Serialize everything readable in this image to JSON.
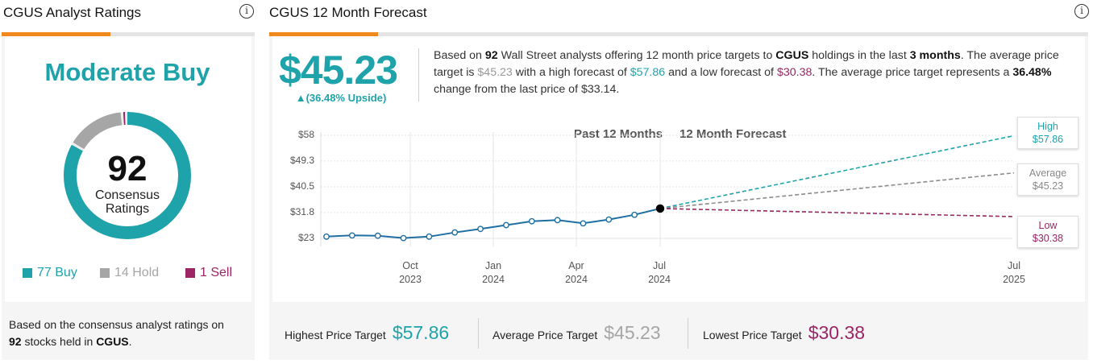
{
  "left": {
    "title": "CGUS Analyst Ratings",
    "consensus": "Moderate Buy",
    "total_ratings": "92",
    "ratings_label_1": "Consensus",
    "ratings_label_2": "Ratings",
    "legend": [
      {
        "label": "77 Buy",
        "color": "#1fa3ab",
        "count": 77
      },
      {
        "label": "14 Hold",
        "color": "#a6a6a6",
        "count": 14
      },
      {
        "label": "1 Sell",
        "color": "#9c2565",
        "count": 1
      }
    ],
    "footnote_1": "Based on the consensus analyst ratings on",
    "footnote_num": "92",
    "footnote_2": " stocks held in ",
    "footnote_ticker": "CGUS",
    "footnote_end": "."
  },
  "right": {
    "title": "CGUS 12 Month Forecast",
    "price": "$45.23",
    "upside": "▲(36.48% Upside)",
    "desc": {
      "s1": "Based on ",
      "n_analysts": "92",
      "s2": " Wall Street analysts offering 12 month price targets to ",
      "ticker": "CGUS",
      "s3": " holdings in the last ",
      "months": "3 months",
      "s4": ". The average price target is ",
      "avg": "$45.23",
      "s5": " with a high forecast of ",
      "high": "$57.86",
      "s6": " and a low forecast of ",
      "low": "$30.38",
      "s7": ". The average price target represents a ",
      "change": "36.48%",
      "s8": " change from the last price of ",
      "last": "$33.14",
      "s9": "."
    },
    "chart_past_label": "Past 12 Months",
    "chart_forecast_label": "12 Month Forecast",
    "callouts": {
      "high_label": "High",
      "high_value": "$57.86",
      "avg_label": "Average",
      "avg_value": "$45.23",
      "low_label": "Low",
      "low_value": "$30.38"
    },
    "footer": {
      "highest_label": "Highest Price Target",
      "highest_value": "$57.86",
      "average_label": "Average Price Target",
      "average_value": "$45.23",
      "lowest_label": "Lowest Price Target",
      "lowest_value": "$30.38"
    }
  },
  "colors": {
    "teal": "#1fa3ab",
    "gray": "#a6a6a6",
    "purple": "#9c2565",
    "orange": "#f0891e",
    "line": "#1f6fa3"
  },
  "chart_data": {
    "type": "line",
    "y_ticks": [
      "$58",
      "$49.3",
      "$40.5",
      "$31.8",
      "$23"
    ],
    "ylim": [
      23,
      58
    ],
    "x_ticks": [
      {
        "month": "Oct",
        "year": "2023"
      },
      {
        "month": "Jan",
        "year": "2024"
      },
      {
        "month": "Apr",
        "year": "2024"
      },
      {
        "month": "Jul",
        "year": "2024"
      },
      {
        "month": "Jul",
        "year": "2025"
      }
    ],
    "series": [
      {
        "values": [
          23.6,
          24.0,
          23.9,
          23.1,
          23.6,
          25.0,
          26.2,
          27.5,
          28.8,
          29.2,
          28.1,
          29.4,
          31.0,
          33.14
        ]
      }
    ],
    "forecast": {
      "start": 33.14,
      "high": 57.86,
      "average": 45.23,
      "low": 30.38
    }
  }
}
